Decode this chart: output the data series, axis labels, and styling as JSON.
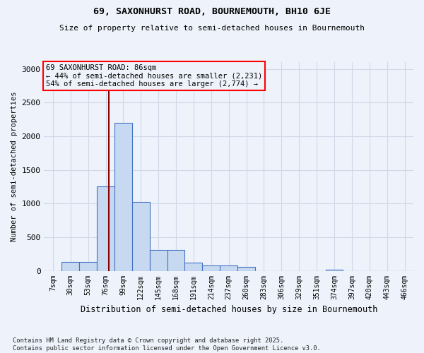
{
  "title_line1": "69, SAXONHURST ROAD, BOURNEMOUTH, BH10 6JE",
  "title_line2": "Size of property relative to semi-detached houses in Bournemouth",
  "xlabel": "Distribution of semi-detached houses by size in Bournemouth",
  "ylabel": "Number of semi-detached properties",
  "footnote": "Contains HM Land Registry data © Crown copyright and database right 2025.\nContains public sector information licensed under the Open Government Licence v3.0.",
  "bin_labels": [
    "7sqm",
    "30sqm",
    "53sqm",
    "76sqm",
    "99sqm",
    "122sqm",
    "145sqm",
    "168sqm",
    "191sqm",
    "214sqm",
    "237sqm",
    "260sqm",
    "283sqm",
    "306sqm",
    "329sqm",
    "351sqm",
    "374sqm",
    "397sqm",
    "420sqm",
    "443sqm",
    "466sqm"
  ],
  "bar_heights": [
    0,
    130,
    130,
    1250,
    2200,
    1020,
    310,
    310,
    120,
    80,
    80,
    60,
    0,
    0,
    0,
    0,
    20,
    0,
    0,
    0,
    0
  ],
  "bar_color": "#c6d9f0",
  "bar_edge_color": "#4472c4",
  "grid_color": "#d0d8e8",
  "background_color": "#eef3fb",
  "vline_color": "#8b0000",
  "annotation_box_text": "69 SAXONHURST ROAD: 86sqm\n← 44% of semi-detached houses are smaller (2,231)\n54% of semi-detached houses are larger (2,774) →",
  "annotation_box_color": "red",
  "ylim": [
    0,
    3100
  ],
  "yticks": [
    0,
    500,
    1000,
    1500,
    2000,
    2500,
    3000
  ],
  "vline_pos": 3.2
}
